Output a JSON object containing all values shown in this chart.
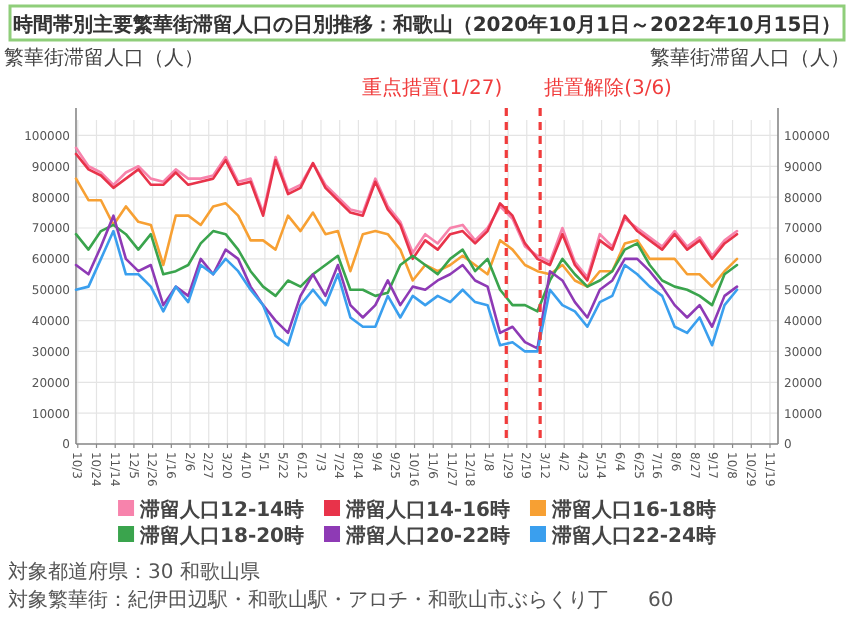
{
  "chart_data": {
    "type": "line",
    "title": "時間帯別主要繁華街滞留人口の日別推移：和歌山（2020年10月1日～2022年10月15日）",
    "ylabel": "繁華街滞留人口（人）",
    "y2label": "繁華街滞留人口（人）",
    "x": [
      "2020-10-01",
      "2020-10-15",
      "2020-10-29",
      "2020-11-12",
      "2020-11-26",
      "2020-12-10",
      "2020-12-24",
      "2021-01-07",
      "2021-01-21",
      "2021-02-04",
      "2021-02-18",
      "2021-03-04",
      "2021-03-18",
      "2021-04-01",
      "2021-04-15",
      "2021-04-29",
      "2021-05-13",
      "2021-05-27",
      "2021-06-10",
      "2021-06-24",
      "2021-07-08",
      "2021-07-22",
      "2021-08-05",
      "2021-08-19",
      "2021-09-02",
      "2021-09-16",
      "2021-09-30",
      "2021-10-14",
      "2021-10-28",
      "2021-11-11",
      "2021-11-25",
      "2021-12-09",
      "2021-12-23",
      "2022-01-06",
      "2022-01-20",
      "2022-02-03",
      "2022-02-17",
      "2022-03-03",
      "2022-03-17",
      "2022-03-31",
      "2022-04-14",
      "2022-04-28",
      "2022-05-12",
      "2022-05-26",
      "2022-06-09",
      "2022-06-23",
      "2022-07-07",
      "2022-07-21",
      "2022-08-04",
      "2022-08-18",
      "2022-09-01",
      "2022-09-15",
      "2022-09-29",
      "2022-10-13"
    ],
    "series": [
      {
        "name": "滞留人口12-14時",
        "color": "#f783ac",
        "values": [
          96000,
          90000,
          88000,
          84000,
          88000,
          90000,
          86000,
          85000,
          89000,
          86000,
          86000,
          87000,
          93000,
          85000,
          86000,
          75000,
          93000,
          82000,
          84000,
          91000,
          84000,
          80000,
          76000,
          75000,
          86000,
          77000,
          72000,
          62000,
          68000,
          65000,
          70000,
          71000,
          66000,
          70000,
          77000,
          73000,
          64000,
          61000,
          59000,
          70000,
          59000,
          54000,
          68000,
          64000,
          73000,
          70000,
          67000,
          64000,
          69000,
          64000,
          67000,
          61000,
          66000,
          69000
        ]
      },
      {
        "name": "滞留人口14-16時",
        "color": "#e8334a",
        "values": [
          94000,
          89000,
          87000,
          83000,
          86000,
          89000,
          84000,
          84000,
          88000,
          84000,
          85000,
          86000,
          92000,
          84000,
          85000,
          74000,
          92000,
          81000,
          83000,
          91000,
          83000,
          79000,
          75000,
          74000,
          85000,
          76000,
          71000,
          60000,
          66000,
          63000,
          68000,
          69000,
          65000,
          69000,
          78000,
          74000,
          65000,
          60000,
          58000,
          68000,
          58000,
          53000,
          66000,
          63000,
          74000,
          69000,
          66000,
          63000,
          68000,
          63000,
          66000,
          60000,
          65000,
          68000
        ]
      },
      {
        "name": "滞留人口16-18時",
        "color": "#f7a033",
        "values": [
          86000,
          79000,
          79000,
          71000,
          77000,
          72000,
          71000,
          58000,
          74000,
          74000,
          71000,
          77000,
          78000,
          74000,
          66000,
          66000,
          63000,
          74000,
          69000,
          75000,
          68000,
          69000,
          56000,
          68000,
          69000,
          68000,
          63000,
          53000,
          58000,
          56000,
          58000,
          61000,
          58000,
          55000,
          66000,
          63000,
          58000,
          56000,
          55000,
          58000,
          53000,
          51000,
          56000,
          56000,
          65000,
          66000,
          60000,
          60000,
          60000,
          55000,
          55000,
          51000,
          56000,
          60000
        ]
      },
      {
        "name": "滞留人口18-20時",
        "color": "#3aa44d",
        "values": [
          68000,
          63000,
          69000,
          71000,
          68000,
          63000,
          68000,
          55000,
          56000,
          58000,
          65000,
          69000,
          68000,
          63000,
          56000,
          51000,
          48000,
          53000,
          51000,
          55000,
          58000,
          61000,
          50000,
          50000,
          48000,
          49000,
          58000,
          61000,
          58000,
          55000,
          60000,
          63000,
          56000,
          60000,
          50000,
          45000,
          45000,
          43000,
          53000,
          60000,
          55000,
          51000,
          53000,
          56000,
          63000,
          65000,
          58000,
          53000,
          51000,
          50000,
          48000,
          45000,
          55000,
          58000
        ]
      },
      {
        "name": "滞留人口20-22時",
        "color": "#8e3ab5",
        "values": [
          58000,
          55000,
          64000,
          74000,
          60000,
          56000,
          58000,
          45000,
          51000,
          48000,
          60000,
          55000,
          63000,
          60000,
          51000,
          45000,
          40000,
          36000,
          48000,
          55000,
          48000,
          58000,
          45000,
          41000,
          45000,
          53000,
          45000,
          51000,
          50000,
          53000,
          55000,
          58000,
          53000,
          51000,
          36000,
          38000,
          33000,
          31000,
          56000,
          53000,
          46000,
          41000,
          50000,
          53000,
          60000,
          60000,
          56000,
          51000,
          45000,
          41000,
          45000,
          38000,
          48000,
          51000
        ]
      },
      {
        "name": "滞留人口22-24時",
        "color": "#3a9fee",
        "values": [
          50000,
          51000,
          60000,
          69000,
          55000,
          55000,
          51000,
          43000,
          51000,
          46000,
          58000,
          55000,
          60000,
          56000,
          50000,
          45000,
          35000,
          32000,
          45000,
          50000,
          45000,
          55000,
          41000,
          38000,
          38000,
          48000,
          41000,
          48000,
          45000,
          48000,
          46000,
          50000,
          46000,
          45000,
          32000,
          33000,
          30000,
          30000,
          50000,
          45000,
          43000,
          38000,
          46000,
          48000,
          58000,
          55000,
          51000,
          48000,
          38000,
          36000,
          41000,
          32000,
          45000,
          50000
        ]
      }
    ],
    "xlim": [
      "2020-10-01",
      "2022-11-28"
    ],
    "xticks": [
      {
        "value": "2020-10-03",
        "label": "10/3"
      },
      {
        "value": "2020-10-24",
        "label": "10/24"
      },
      {
        "value": "2020-11-14",
        "label": "11/14"
      },
      {
        "value": "2020-12-05",
        "label": "12/5"
      },
      {
        "value": "2020-12-26",
        "label": "12/26"
      },
      {
        "value": "2021-01-16",
        "label": "1/16"
      },
      {
        "value": "2021-02-06",
        "label": "2/6"
      },
      {
        "value": "2021-02-27",
        "label": "2/27"
      },
      {
        "value": "2021-03-20",
        "label": "3/20"
      },
      {
        "value": "2021-04-10",
        "label": "4/10"
      },
      {
        "value": "2021-05-01",
        "label": "5/1"
      },
      {
        "value": "2021-05-22",
        "label": "5/22"
      },
      {
        "value": "2021-06-12",
        "label": "6/12"
      },
      {
        "value": "2021-07-03",
        "label": "7/3"
      },
      {
        "value": "2021-07-24",
        "label": "7/24"
      },
      {
        "value": "2021-08-14",
        "label": "8/14"
      },
      {
        "value": "2021-09-04",
        "label": "9/4"
      },
      {
        "value": "2021-09-25",
        "label": "9/25"
      },
      {
        "value": "2021-10-16",
        "label": "10/16"
      },
      {
        "value": "2021-11-06",
        "label": "11/6"
      },
      {
        "value": "2021-11-27",
        "label": "11/27"
      },
      {
        "value": "2021-12-18",
        "label": "12/18"
      },
      {
        "value": "2022-01-08",
        "label": "1/8"
      },
      {
        "value": "2022-01-29",
        "label": "1/29"
      },
      {
        "value": "2022-02-19",
        "label": "2/19"
      },
      {
        "value": "2022-03-12",
        "label": "3/12"
      },
      {
        "value": "2022-04-02",
        "label": "4/2"
      },
      {
        "value": "2022-04-23",
        "label": "4/23"
      },
      {
        "value": "2022-05-14",
        "label": "5/14"
      },
      {
        "value": "2022-06-04",
        "label": "6/4"
      },
      {
        "value": "2022-06-25",
        "label": "6/25"
      },
      {
        "value": "2022-07-16",
        "label": "7/16"
      },
      {
        "value": "2022-08-06",
        "label": "8/6"
      },
      {
        "value": "2022-08-27",
        "label": "8/27"
      },
      {
        "value": "2022-09-17",
        "label": "9/17"
      },
      {
        "value": "2022-10-08",
        "label": "10/8"
      },
      {
        "value": "2022-10-29",
        "label": "10/29"
      },
      {
        "value": "2022-11-19",
        "label": "11/19"
      }
    ],
    "ylim": [
      0,
      105000
    ],
    "yticks": [
      0,
      10000,
      20000,
      30000,
      40000,
      50000,
      60000,
      70000,
      80000,
      90000,
      100000
    ],
    "y2lim": [
      0,
      105000
    ],
    "y2ticks": [
      0,
      10000,
      20000,
      30000,
      40000,
      50000,
      60000,
      70000,
      80000,
      90000,
      100000
    ],
    "ref_lines": [
      {
        "axis": "x",
        "value": "2022-01-27",
        "label": "重点措置(1/27)",
        "color": "#f03c3c",
        "line_style": "dashed"
      },
      {
        "axis": "x",
        "value": "2022-03-06",
        "label": "措置解除(3/6)",
        "color": "#f03c3c",
        "line_style": "dashed"
      }
    ],
    "grid": true,
    "legend": "bottom",
    "annotations": [
      "対象都道府県：30 和歌山県",
      "対象繁華街：紀伊田辺駅・和歌山駅・アロチ・和歌山市ぶらくり丁",
      "60"
    ]
  }
}
